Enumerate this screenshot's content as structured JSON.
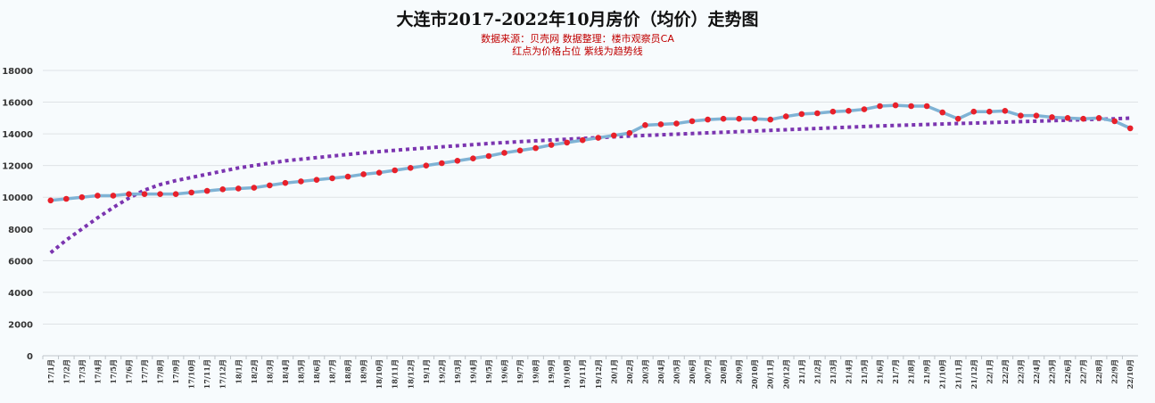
{
  "title": "大连市2017-2022年10月房价（均价）走势图",
  "subtitle1": "数据来源：贝壳网  数据整理：楼市观察员CA",
  "subtitle2": "红点为价格占位   紫线为趋势线",
  "chart_data": {
    "type": "line",
    "title": "大连市2017-2022年10月房价（均价）走势图",
    "ylim": [
      0,
      18000
    ],
    "yticks": [
      0,
      2000,
      4000,
      6000,
      8000,
      10000,
      12000,
      14000,
      16000,
      18000
    ],
    "grid": true,
    "categories": [
      "17/1月",
      "17/2月",
      "17/3月",
      "17/4月",
      "17/5月",
      "17/6月",
      "17/7月",
      "17/8月",
      "17/9月",
      "17/10月",
      "17/11月",
      "17/12月",
      "18/1月",
      "18/2月",
      "18/3月",
      "18/4月",
      "18/5月",
      "18/6月",
      "18/7月",
      "18/8月",
      "18/9月",
      "18/10月",
      "18/11月",
      "18/12月",
      "19/1月",
      "19/2月",
      "19/3月",
      "19/4月",
      "19/5月",
      "19/6月",
      "19/7月",
      "19/8月",
      "19/9月",
      "19/10月",
      "19/11月",
      "19/12月",
      "20/1月",
      "20/2月",
      "20/3月",
      "20/4月",
      "20/5月",
      "20/6月",
      "20/7月",
      "20/8月",
      "20/9月",
      "20/10月",
      "20/11月",
      "20/12月",
      "21/1月",
      "21/2月",
      "21/3月",
      "21/4月",
      "21/5月",
      "21/6月",
      "21/7月",
      "21/8月",
      "21/9月",
      "21/10月",
      "21/11月",
      "21/12月",
      "22/1月",
      "22/2月",
      "22/3月",
      "22/4月",
      "22/5月",
      "22/6月",
      "22/7月",
      "22/8月",
      "22/9月",
      "22/10月"
    ],
    "series": [
      {
        "role": "price",
        "color": "#7fb3d5",
        "marker_color": "#e8202a",
        "values": [
          9800,
          9900,
          10000,
          10100,
          10100,
          10200,
          10200,
          10200,
          10200,
          10300,
          10400,
          10500,
          10550,
          10600,
          10750,
          10900,
          11000,
          11100,
          11200,
          11300,
          11450,
          11550,
          11700,
          11850,
          12000,
          12150,
          12300,
          12450,
          12600,
          12800,
          12950,
          13100,
          13300,
          13450,
          13600,
          13750,
          13900,
          14050,
          14550,
          14600,
          14650,
          14800,
          14900,
          14950,
          14950,
          14950,
          14900,
          15100,
          15250,
          15300,
          15400,
          15450,
          15550,
          15750,
          15800,
          15750,
          15750,
          15350,
          14950,
          15400,
          15400,
          15450,
          15150,
          15150,
          15050,
          15000,
          14950,
          15000,
          14800,
          14350
        ]
      },
      {
        "role": "trend",
        "color": "#7b35b0",
        "values": [
          6500,
          7300,
          8000,
          8700,
          9350,
          9950,
          10450,
          10800,
          11050,
          11250,
          11450,
          11650,
          11850,
          12000,
          12150,
          12300,
          12400,
          12500,
          12600,
          12700,
          12800,
          12880,
          12960,
          13040,
          13110,
          13180,
          13250,
          13320,
          13390,
          13450,
          13510,
          13560,
          13610,
          13660,
          13710,
          13760,
          13810,
          13860,
          13900,
          13940,
          13980,
          14020,
          14060,
          14100,
          14140,
          14180,
          14220,
          14260,
          14300,
          14340,
          14380,
          14420,
          14460,
          14500,
          14530,
          14560,
          14590,
          14620,
          14650,
          14680,
          14710,
          14740,
          14770,
          14800,
          14830,
          14860,
          14890,
          14920,
          14950,
          14990
        ]
      }
    ]
  }
}
